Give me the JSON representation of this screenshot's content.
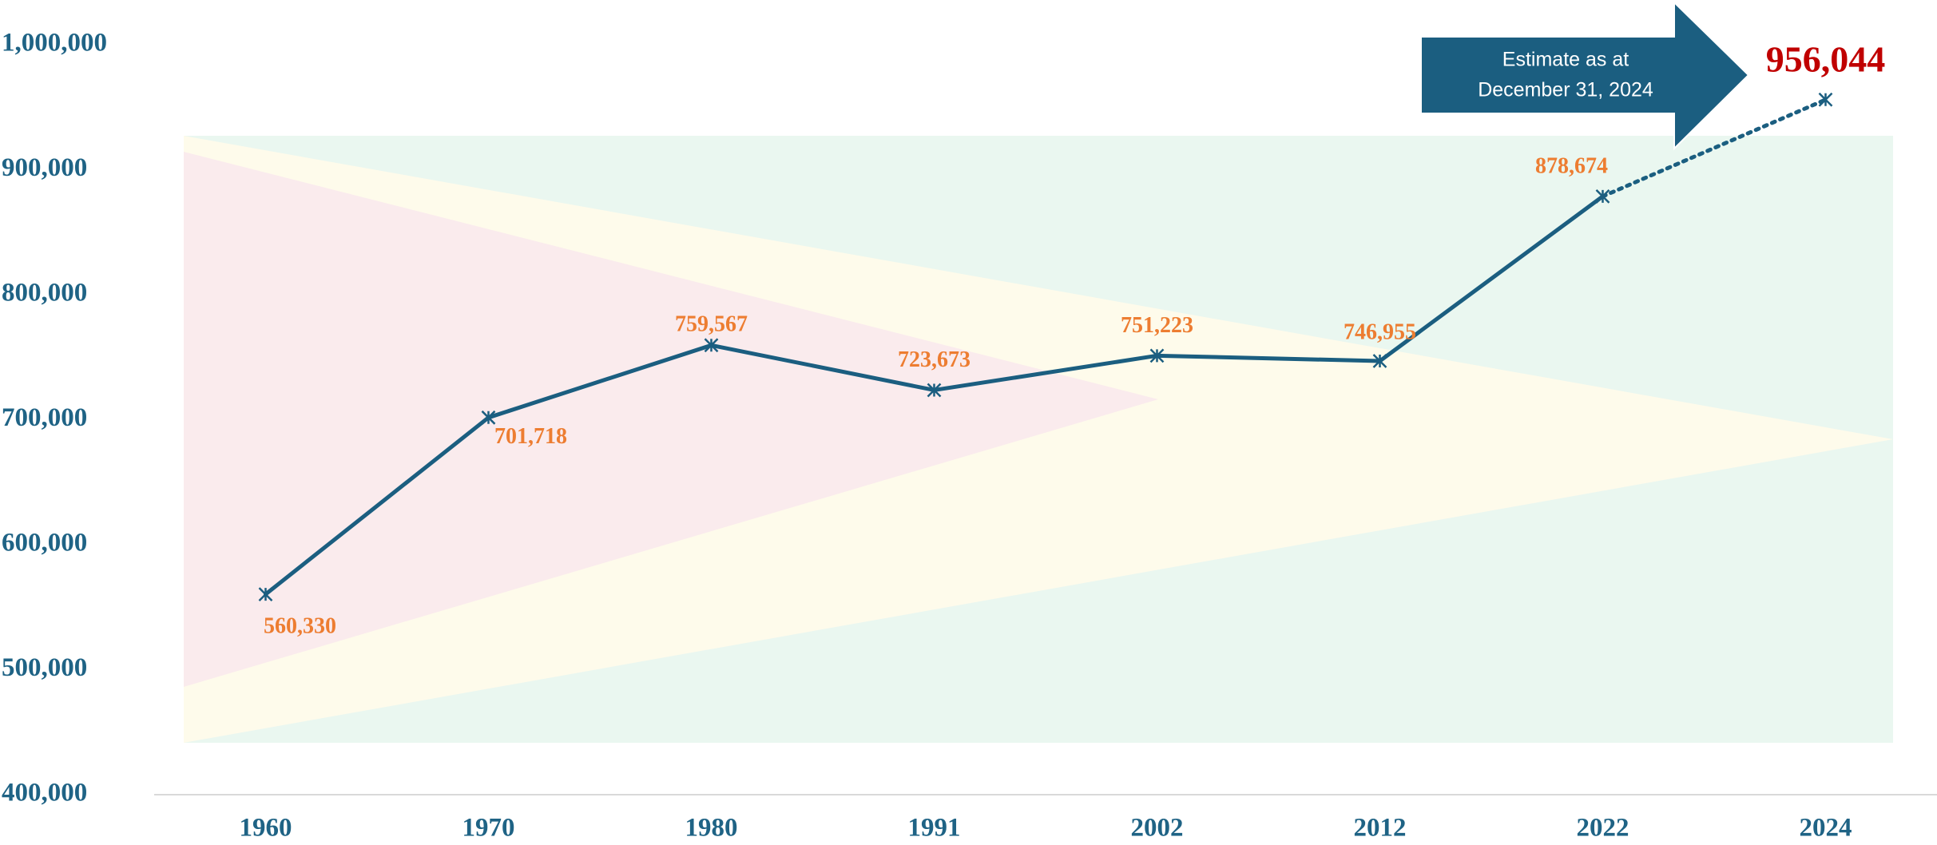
{
  "chart_data": {
    "type": "line",
    "categories": [
      "1960",
      "1970",
      "1980",
      "1991",
      "2002",
      "2012",
      "2022",
      "2024"
    ],
    "values": [
      560330,
      701718,
      759567,
      723673,
      751223,
      746955,
      878674,
      956044
    ],
    "value_labels": [
      "560,330",
      "701,718",
      "759,567",
      "723,673",
      "751,223",
      "746,955",
      "878,674",
      "956,044"
    ],
    "color": "#1b5e80",
    "label_color": "#ed7d31",
    "highlight_color": "#c00000",
    "axis_label_color": "#1f6385",
    "dotted_from_index": 6,
    "annotation": [
      "Estimate as at",
      "December 31, 2024"
    ],
    "ylim": [
      400000,
      1000000
    ],
    "yticks": [
      {
        "value": 400000,
        "label": "400,000"
      },
      {
        "value": 500000,
        "label": "500,000"
      },
      {
        "value": 600000,
        "label": "600,000"
      },
      {
        "value": 700000,
        "label": "700,000"
      },
      {
        "value": 800000,
        "label": "800,000"
      },
      {
        "value": 900000,
        "label": "900,000"
      },
      {
        "value": 1000000,
        "label": "1,000,000"
      }
    ],
    "grid": false
  }
}
